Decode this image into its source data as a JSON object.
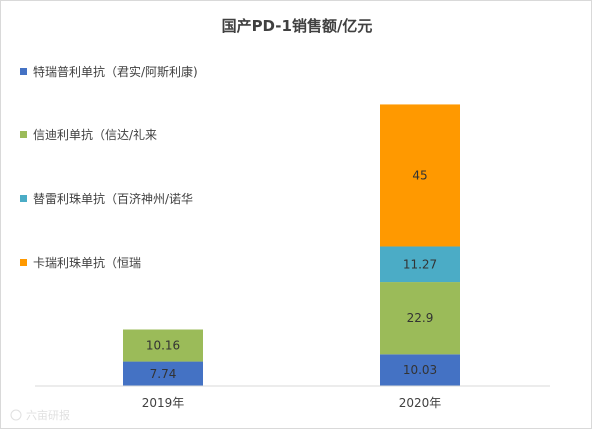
{
  "chart_data": {
    "type": "bar",
    "stacked": true,
    "title": "国产PD-1销售额/亿元",
    "categories": [
      "2019年",
      "2020年"
    ],
    "ylim": [
      0,
      100
    ],
    "grid": false,
    "legend_position": "left",
    "series": [
      {
        "name": "特瑞普利单抗（君实/阿斯利康)",
        "color": "#4472C4",
        "values": [
          7.74,
          10.03
        ],
        "labels": [
          "7.74",
          "10.03"
        ]
      },
      {
        "name": "信迪利单抗（信达/礼来",
        "color": "#9BBB59",
        "values": [
          10.16,
          22.9
        ],
        "labels": [
          "10.16",
          "22.9"
        ]
      },
      {
        "name": "替雷利珠单抗（百济神州/诺华",
        "color": "#4BACC6",
        "values": [
          0,
          11.27
        ],
        "labels": [
          "",
          "11.27"
        ]
      },
      {
        "name": "卡瑞利珠单抗（恒瑞",
        "color": "#FF9900",
        "values": [
          0,
          45
        ],
        "labels": [
          "",
          "45"
        ]
      }
    ]
  },
  "watermark": "六亩研报"
}
